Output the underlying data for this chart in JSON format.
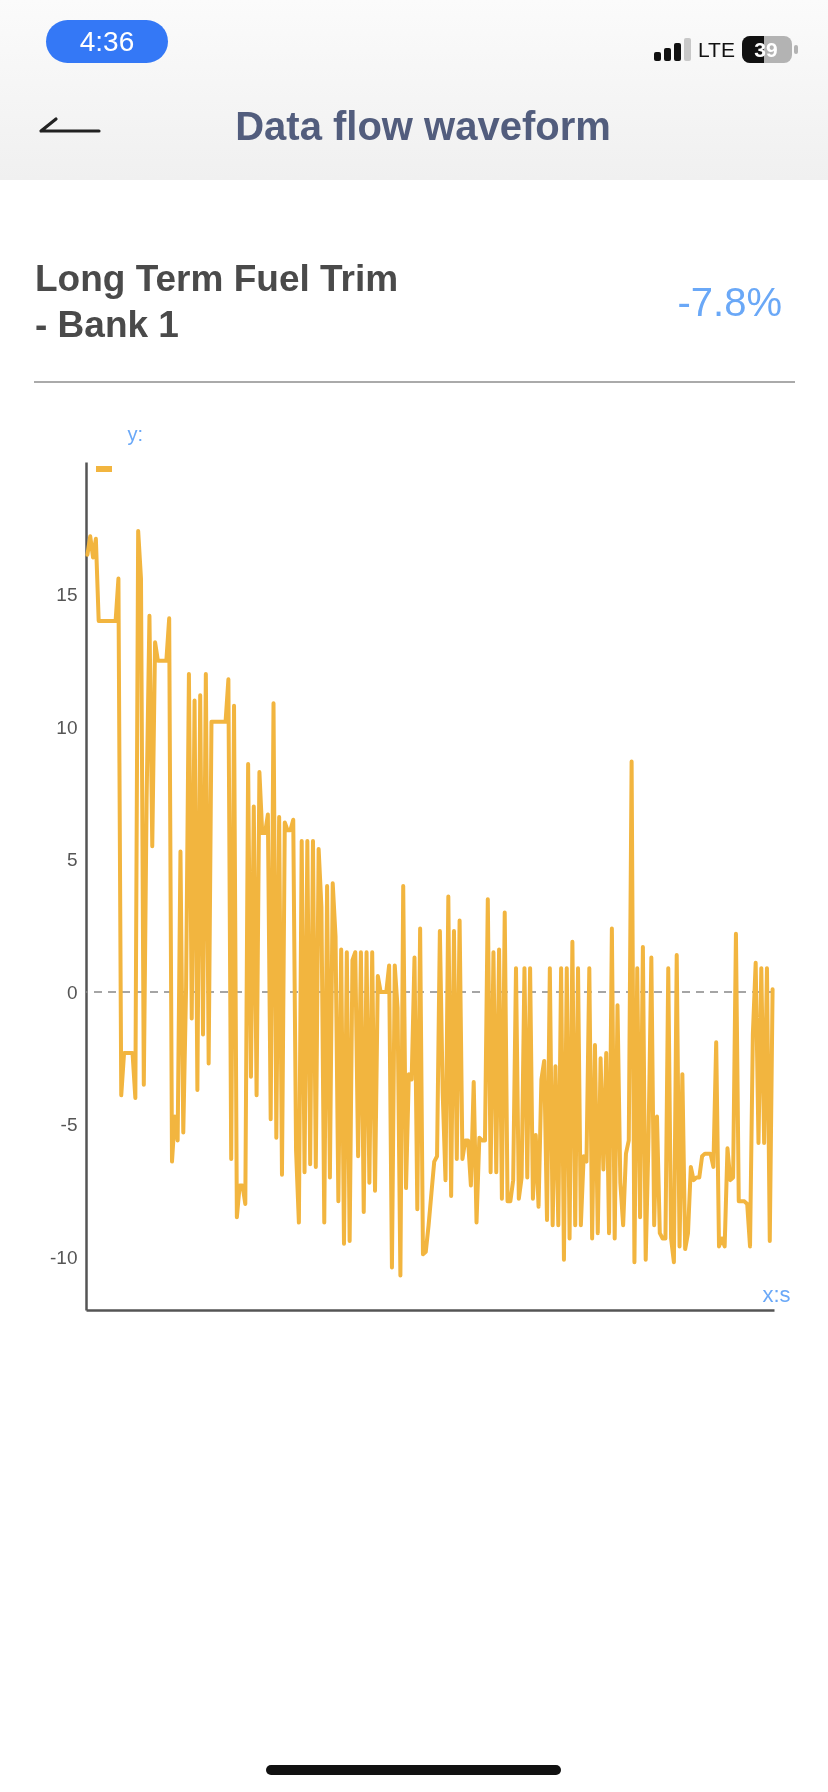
{
  "chart_data": {
    "type": "line",
    "title": "Long Term Fuel Trim - Bank 1",
    "annotations": [
      "Data flow waveform",
      "-7.8%",
      "4:36",
      "LTE",
      "39"
    ],
    "xlabel": "x:s",
    "ylabel": "y:",
    "categories": [
      null,
      null,
      null,
      null,
      null,
      null,
      null,
      null,
      null,
      null,
      null,
      null,
      null,
      null,
      null,
      null,
      null,
      null,
      null,
      null,
      null,
      null,
      null,
      null,
      null,
      null,
      null,
      null,
      null,
      null,
      null,
      null,
      null,
      null,
      null,
      null,
      null,
      null,
      null,
      null,
      null,
      null,
      null,
      null,
      null,
      null,
      null,
      null,
      null,
      null,
      null,
      null,
      null,
      null,
      null,
      null,
      null,
      null,
      null,
      null,
      null,
      null,
      null,
      null,
      null,
      null,
      null,
      null,
      null,
      null,
      null,
      null,
      null,
      null,
      null,
      null,
      null,
      null,
      null,
      null,
      null,
      null,
      null,
      null,
      null,
      null,
      null,
      null,
      null,
      null,
      null,
      null,
      null,
      null,
      null,
      null,
      null,
      null,
      null,
      null,
      null,
      null,
      null,
      null,
      null,
      null,
      null,
      null,
      null,
      null,
      null,
      null,
      null,
      null,
      null,
      null,
      null,
      null,
      null,
      null,
      null,
      null,
      null,
      null,
      null,
      null,
      null,
      null,
      null,
      null,
      null,
      null,
      null,
      null,
      null,
      null,
      null,
      null,
      null,
      null,
      null,
      null,
      null,
      null,
      null,
      null,
      null,
      null,
      null,
      null,
      null,
      null,
      null,
      null,
      null,
      null,
      null,
      null,
      null,
      null,
      null,
      null,
      null,
      null,
      null,
      null,
      null,
      null,
      null,
      null,
      null,
      null,
      null,
      null,
      null,
      null,
      null,
      null,
      null,
      null,
      null,
      null,
      null,
      null,
      null,
      null,
      null,
      null,
      null,
      null,
      null,
      null,
      null,
      null,
      null,
      null,
      null,
      null,
      null,
      null,
      null,
      null,
      null,
      null,
      null,
      null,
      null,
      null,
      null,
      null,
      null,
      null,
      null,
      null,
      null,
      null,
      null,
      null,
      null,
      null,
      null,
      null,
      null,
      null,
      null,
      null,
      null,
      null,
      null,
      null,
      null,
      null,
      null,
      null,
      null,
      null,
      null,
      null,
      null,
      null,
      null,
      null,
      null,
      null
    ],
    "color": "#f2b53f",
    "values": [
      16.5,
      17.2,
      16.4,
      17.1,
      14,
      14,
      14,
      14,
      14,
      14,
      14,
      15.6,
      -3.9,
      -2.3,
      -2.3,
      -2.3,
      -2.3,
      -4,
      17.4,
      15.6,
      -3.5,
      7.3,
      14.2,
      5.5,
      13.2,
      12.5,
      12.5,
      12.5,
      12.5,
      14.1,
      -6.4,
      -4.7,
      -5.6,
      5.3,
      -5.3,
      0.2,
      12,
      -1,
      11,
      -3.7,
      11.2,
      -1.6,
      12,
      -2.7,
      10.2,
      10.2,
      10.2,
      10.2,
      10.2,
      10.2,
      11.8,
      -6.3,
      10.8,
      -8.5,
      -7.3,
      -7.3,
      -8,
      8.6,
      -3.2,
      7,
      -3.9,
      8.3,
      6,
      6,
      6.7,
      -4.8,
      10.9,
      -5.5,
      6.6,
      -6.9,
      6.4,
      6.1,
      6.1,
      6.5,
      -6,
      -8.7,
      5.7,
      -6.8,
      5.7,
      -6.5,
      5.7,
      -6.6,
      5.4,
      3.2,
      -8.7,
      4,
      -7,
      4.1,
      2.1,
      -7.9,
      1.6,
      -9.5,
      1.5,
      -9.4,
      1.2,
      1.5,
      -6.2,
      1.5,
      -8.3,
      1.5,
      -7.2,
      1.5,
      -7.5,
      0.6,
      0,
      0,
      0,
      1,
      -10.4,
      1,
      -0.6,
      -10.7,
      4,
      -7.4,
      -3.1,
      -3.3,
      1.3,
      -8.2,
      2.4,
      -9.9,
      -9.8,
      -8.8,
      -7.6,
      -6.4,
      -6.2,
      2.3,
      -3.8,
      -7.1,
      3.6,
      -7.7,
      2.3,
      -6.3,
      2.7,
      -6.3,
      -5.6,
      -5.6,
      -7.3,
      -3.4,
      -8.7,
      -5.5,
      -5.6,
      -5.6,
      3.5,
      -6.8,
      1.5,
      -6.8,
      1.6,
      -7.8,
      3,
      -7.9,
      -7.9,
      -7.1,
      0.9,
      -7.8,
      -7,
      0.9,
      -7,
      0.9,
      -7.8,
      -5.4,
      -8.1,
      -3.3,
      -2.6,
      -8.6,
      0.9,
      -8.8,
      -2.8,
      -8.8,
      0.9,
      -10.1,
      0.9,
      -9.3,
      1.9,
      -8.8,
      0.9,
      -8.8,
      -6.2,
      -6.4,
      0.9,
      -9.3,
      -2,
      -9.1,
      -2.5,
      -6.7,
      -2.3,
      -9.1,
      2.4,
      -9.3,
      -0.5,
      -7.2,
      -8.8,
      -6.1,
      -5.6,
      8.7,
      -10.2,
      0.9,
      -8.5,
      1.7,
      -10.1,
      -5.5,
      1.3,
      -8.8,
      -4.7,
      -9.1,
      -9.3,
      -9.3,
      0.9,
      -9.3,
      -10.2,
      1.4,
      -9.6,
      -3.1,
      -9.7,
      -9.1,
      -6.6,
      -7.1,
      -7,
      -7,
      -6.2,
      -6.1,
      -6.1,
      -6.1,
      -6.6,
      -1.9,
      -9.6,
      -9.3,
      -9.6,
      -5.9,
      -7.1,
      -7,
      2.2,
      -7.9,
      -7.9,
      -7.9,
      -8,
      -9.6,
      -1.6,
      1.1,
      -5.7,
      0.9,
      -5.7,
      0.9,
      -9.4,
      0.1
    ],
    "ylim": [
      -12,
      20
    ],
    "yticks": [
      -10,
      -5,
      0,
      5,
      10,
      15
    ],
    "tick_labels": "y",
    "ref_lines": [
      {
        "axis": "y",
        "value": 0,
        "color": "#888888",
        "line_style": "dashed"
      }
    ]
  }
}
